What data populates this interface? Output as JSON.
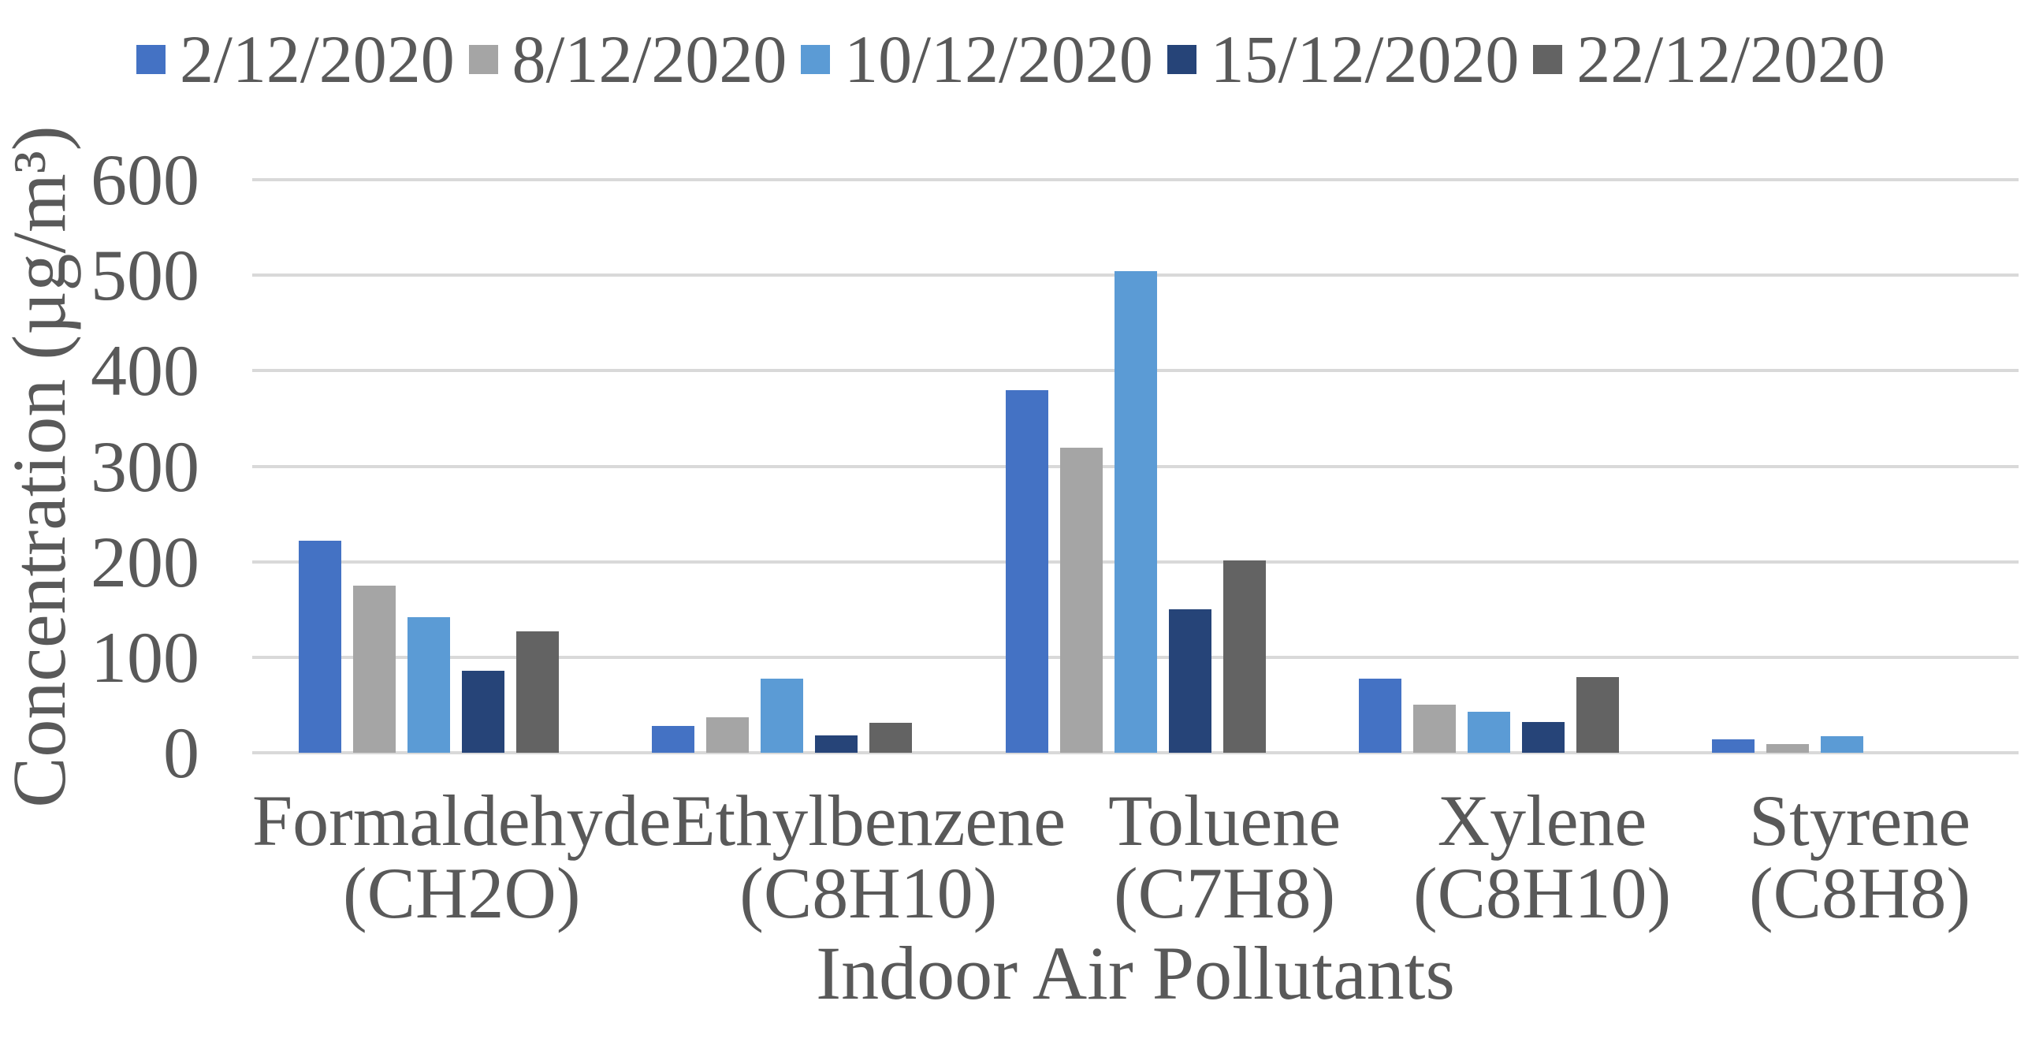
{
  "chart_data": {
    "type": "bar",
    "title": "",
    "xlabel": "Indoor Air Pollutants",
    "ylabel": "Concentration (µg/m³)",
    "ylim": [
      0,
      600
    ],
    "yticks": [
      0,
      100,
      200,
      300,
      400,
      500,
      600
    ],
    "grid": true,
    "legend_position": "top",
    "categories": [
      {
        "line1": "Formaldehyde",
        "line2": "(CH2O)"
      },
      {
        "line1": "Ethylbenzene",
        "line2": "(C8H10)"
      },
      {
        "line1": "Toluene",
        "line2": "(C7H8)"
      },
      {
        "line1": "Xylene",
        "line2": "(C8H10)"
      },
      {
        "line1": "Styrene",
        "line2": "(C8H8)"
      }
    ],
    "series": [
      {
        "name": "2/12/2020",
        "color": "#4472C4",
        "values": [
          222,
          28,
          380,
          78,
          14
        ]
      },
      {
        "name": "8/12/2020",
        "color": "#A5A5A5",
        "values": [
          175,
          37,
          319,
          50,
          9
        ]
      },
      {
        "name": "10/12/2020",
        "color": "#5B9BD5",
        "values": [
          142,
          78,
          504,
          43,
          17
        ]
      },
      {
        "name": "15/12/2020",
        "color": "#264478",
        "values": [
          86,
          18,
          150,
          32,
          0
        ]
      },
      {
        "name": "22/12/2020",
        "color": "#636363",
        "values": [
          127,
          31,
          201,
          79,
          0
        ]
      }
    ]
  },
  "style_colors": {
    "text": "#595959",
    "gridline": "#D9D9D9"
  }
}
